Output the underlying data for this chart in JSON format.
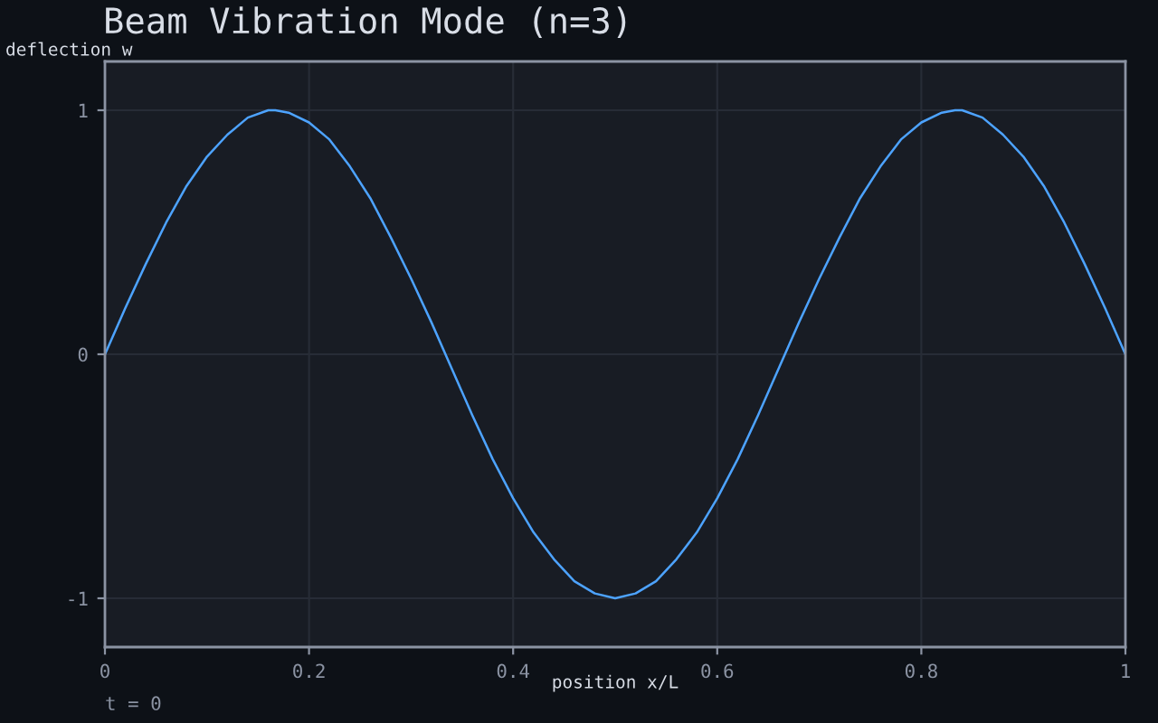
{
  "chart_data": {
    "type": "line",
    "title": "Beam Vibration Mode (n=3)",
    "xlabel": "position x/L",
    "ylabel": "deflection w",
    "annotations": [
      "t = 0"
    ],
    "x": [
      0,
      0.02,
      0.04,
      0.06,
      0.08,
      0.1,
      0.12,
      0.14,
      0.16,
      0.167,
      0.18,
      0.2,
      0.22,
      0.24,
      0.26,
      0.28,
      0.3,
      0.32,
      0.34,
      0.36,
      0.38,
      0.4,
      0.42,
      0.44,
      0.46,
      0.48,
      0.5,
      0.52,
      0.54,
      0.56,
      0.58,
      0.6,
      0.62,
      0.64,
      0.66,
      0.68,
      0.7,
      0.72,
      0.74,
      0.76,
      0.78,
      0.8,
      0.82,
      0.833,
      0.84,
      0.86,
      0.88,
      0.9,
      0.92,
      0.94,
      0.96,
      0.98,
      1
    ],
    "values": [
      0,
      0.19,
      0.37,
      0.54,
      0.69,
      0.81,
      0.9,
      0.97,
      1.0,
      1.0,
      0.99,
      0.95,
      0.88,
      0.77,
      0.64,
      0.48,
      0.31,
      0.13,
      -0.06,
      -0.25,
      -0.43,
      -0.59,
      -0.73,
      -0.84,
      -0.93,
      -0.98,
      -1.0,
      -0.98,
      -0.93,
      -0.84,
      -0.73,
      -0.59,
      -0.43,
      -0.25,
      -0.06,
      0.13,
      0.31,
      0.48,
      0.64,
      0.77,
      0.88,
      0.95,
      0.99,
      1.0,
      1.0,
      0.97,
      0.9,
      0.81,
      0.69,
      0.54,
      0.37,
      0.19,
      0
    ],
    "color": "#4da3ff",
    "xlim": [
      0,
      1
    ],
    "ylim": [
      -1.2,
      1.2
    ],
    "xticks": [
      0,
      0.2,
      0.4,
      0.6,
      0.8,
      1
    ],
    "yticks": [
      -1,
      0,
      1
    ],
    "grid": true
  }
}
